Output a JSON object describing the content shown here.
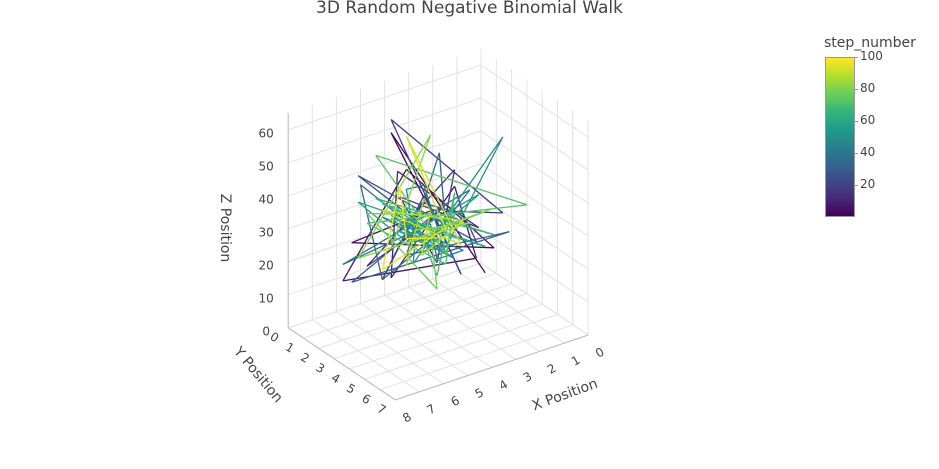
{
  "chart_data": {
    "type": "line3d",
    "title": "3D Random Negative Binomial Walk",
    "xlabel": "X Position",
    "ylabel": "Y Position",
    "zlabel": "Z Position",
    "x_ticks": [
      "0",
      "1",
      "2",
      "3",
      "4",
      "5",
      "6",
      "7",
      "8"
    ],
    "y_ticks": [
      "0",
      "1",
      "2",
      "3",
      "4",
      "5",
      "6",
      "7"
    ],
    "z_ticks": [
      "0",
      "10",
      "20",
      "30",
      "40",
      "50",
      "60"
    ],
    "xlim": [
      0,
      8
    ],
    "ylim": [
      0,
      7
    ],
    "zlim": [
      0,
      65
    ],
    "colorbar": {
      "title": "step_number",
      "colorscale": "Viridis",
      "range": [
        1,
        100
      ],
      "ticks": [
        "20",
        "40",
        "60",
        "80",
        "100"
      ]
    },
    "x": [
      3,
      5,
      4,
      6,
      2,
      5,
      7,
      4,
      3,
      5,
      6,
      2,
      4,
      5,
      3,
      6,
      4,
      1,
      5,
      4,
      3,
      6,
      5,
      2,
      4,
      7,
      3,
      5,
      4,
      6,
      2,
      5,
      3,
      4,
      6,
      5,
      4,
      3,
      7,
      4,
      5,
      2,
      6,
      4,
      3,
      5,
      4,
      6,
      1,
      4,
      5,
      3,
      6,
      4,
      2,
      5,
      4,
      7,
      3,
      5,
      4,
      6,
      3,
      4,
      5,
      2,
      6,
      4,
      5,
      3,
      4,
      6,
      0,
      5,
      4,
      3,
      6,
      5,
      4,
      2,
      5,
      4,
      7,
      3,
      4,
      6,
      5,
      3,
      4,
      5,
      2,
      6,
      4,
      5,
      3,
      4,
      6,
      4,
      5,
      4
    ],
    "y": [
      5,
      2,
      3,
      1,
      4,
      3,
      2,
      6,
      3,
      2,
      4,
      3,
      1,
      5,
      3,
      2,
      4,
      3,
      2,
      5,
      1,
      3,
      4,
      2,
      6,
      3,
      2,
      3,
      4,
      1,
      5,
      3,
      2,
      4,
      3,
      0,
      3,
      4,
      2,
      3,
      5,
      2,
      3,
      4,
      1,
      3,
      2,
      5,
      3,
      4,
      2,
      3,
      6,
      2,
      3,
      4,
      1,
      3,
      5,
      2,
      3,
      4,
      2,
      3,
      1,
      4,
      3,
      2,
      5,
      3,
      4,
      2,
      3,
      1,
      4,
      3,
      2,
      5,
      3,
      4,
      2,
      3,
      3,
      4,
      2,
      5,
      3,
      1,
      3,
      4,
      2,
      3,
      5,
      3,
      2,
      4,
      3,
      1,
      3,
      4
    ],
    "z": [
      20,
      58,
      35,
      24,
      22,
      50,
      18,
      30,
      40,
      14,
      55,
      25,
      33,
      28,
      45,
      20,
      38,
      27,
      62,
      22,
      31,
      19,
      43,
      26,
      35,
      53,
      21,
      28,
      40,
      12,
      30,
      24,
      47,
      33,
      19,
      36,
      26,
      42,
      23,
      31,
      29,
      15,
      38,
      25,
      34,
      44,
      22,
      30,
      50,
      27,
      33,
      18,
      39,
      26,
      35,
      31,
      21,
      45,
      28,
      32,
      24,
      37,
      20,
      29,
      35,
      26,
      42,
      30,
      24,
      38,
      22,
      33,
      27,
      48,
      25,
      31,
      36,
      20,
      29,
      34,
      23,
      58,
      28,
      32,
      26,
      37,
      21,
      30,
      35,
      27,
      24,
      40,
      31,
      60,
      28,
      33,
      22,
      36,
      29,
      30
    ]
  }
}
